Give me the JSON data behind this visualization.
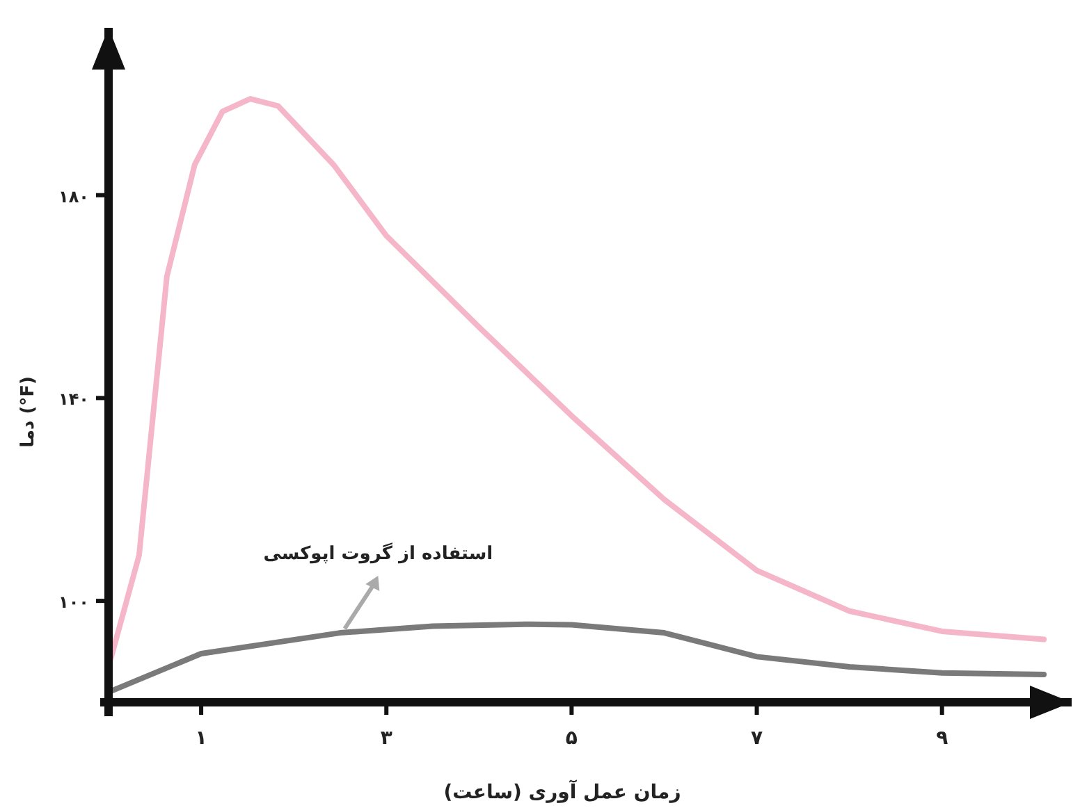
{
  "chart_data": {
    "type": "line",
    "xlabel": "زمان عمل آوری (ساعت)",
    "ylabel": "دما (°F)",
    "xlim": [
      0,
      10.4
    ],
    "ylim": [
      80,
      213
    ],
    "xticks": [
      {
        "value": 1,
        "label": "۱"
      },
      {
        "value": 3,
        "label": "۳"
      },
      {
        "value": 5,
        "label": "۵"
      },
      {
        "value": 7,
        "label": "۷"
      },
      {
        "value": 9,
        "label": "۹"
      }
    ],
    "yticks": [
      {
        "value": 100,
        "label": "۱۰۰"
      },
      {
        "value": 140,
        "label": "۱۴۰"
      },
      {
        "value": 180,
        "label": "۱۸۰"
      }
    ],
    "series": [
      {
        "color": "#f4b6c8",
        "x": [
          0,
          0.33,
          0.63,
          0.93,
          1.23,
          1.53,
          1.83,
          2.43,
          3,
          4,
          5,
          6,
          7,
          8,
          9,
          10.1
        ],
        "values": [
          87,
          109,
          164,
          186,
          196.5,
          199,
          197.6,
          186,
          172,
          154,
          136.5,
          120,
          106,
          98,
          94,
          92.4
        ]
      },
      {
        "color": "#7a7a7a",
        "x": [
          0,
          1,
          2.5,
          3.5,
          4.5,
          5,
          6,
          7,
          8,
          9,
          10.1
        ],
        "values": [
          82,
          89.6,
          93.7,
          95,
          95.4,
          95.3,
          93.7,
          89,
          87,
          85.8,
          85.5
        ]
      }
    ],
    "annotations": [
      {
        "text": "استفاده از گروت اپوکسی",
        "x": 2.55,
        "y": 93.7
      }
    ]
  }
}
